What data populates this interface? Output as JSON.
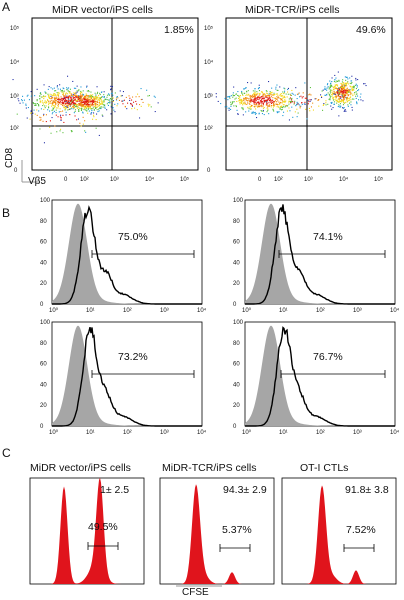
{
  "panel_A": {
    "letter": "A",
    "plots": [
      {
        "title": "MiDR vector/iPS cells",
        "percent": "1.85%"
      },
      {
        "title": "MiDR-TCR/iPS cells",
        "percent": "49.6%"
      }
    ],
    "y_axis_label": "CD8",
    "x_axis_label": "Vβ5",
    "ticks": [
      "0",
      "10²",
      "10³",
      "10⁴",
      "10⁵"
    ]
  },
  "panel_B": {
    "letter": "B",
    "histograms": [
      {
        "percent": "75.0%"
      },
      {
        "percent": "74.1%"
      },
      {
        "percent": "73.2%"
      },
      {
        "percent": "76.7%"
      }
    ],
    "y_ticks": [
      "0",
      "20",
      "40",
      "60",
      "80",
      "100"
    ],
    "x_ticks": [
      "10⁰",
      "10¹",
      "10²",
      "10³",
      "10⁴"
    ]
  },
  "panel_C": {
    "letter": "C",
    "plots": [
      {
        "title": "MiDR vector/iPS cells",
        "top_value": "1± 2.5",
        "gate_value": "49.5%"
      },
      {
        "title": "MiDR-TCR/iPS cells",
        "top_value": "94.3± 2.9",
        "gate_value": "5.37%"
      },
      {
        "title": "OT-I CTLs",
        "top_value": "91.8± 3.8",
        "gate_value": "7.52%"
      }
    ],
    "x_axis_label": "CFSE"
  },
  "colors": {
    "histogram_fill": "#e0141c",
    "isotype_fill": "#a6a6a6"
  }
}
